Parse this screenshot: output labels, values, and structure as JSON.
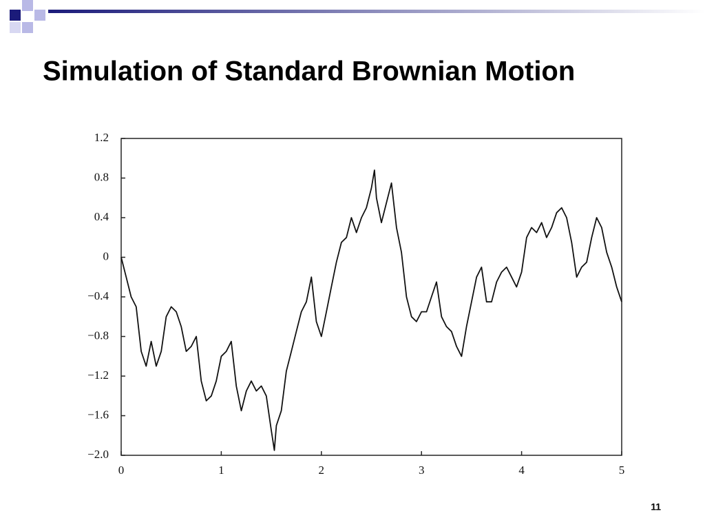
{
  "title": "Simulation of Standard Brownian Motion",
  "page_number": "11",
  "chart_data": {
    "type": "line",
    "x": [
      0,
      0.05,
      0.1,
      0.15,
      0.2,
      0.25,
      0.3,
      0.35,
      0.4,
      0.45,
      0.5,
      0.55,
      0.6,
      0.65,
      0.7,
      0.75,
      0.8,
      0.85,
      0.9,
      0.95,
      1.0,
      1.05,
      1.1,
      1.15,
      1.2,
      1.25,
      1.3,
      1.35,
      1.4,
      1.45,
      1.5,
      1.53,
      1.55,
      1.6,
      1.65,
      1.7,
      1.75,
      1.8,
      1.85,
      1.9,
      1.95,
      2.0,
      2.05,
      2.1,
      2.15,
      2.2,
      2.25,
      2.3,
      2.35,
      2.4,
      2.45,
      2.5,
      2.53,
      2.55,
      2.6,
      2.65,
      2.7,
      2.75,
      2.8,
      2.85,
      2.9,
      2.95,
      3.0,
      3.05,
      3.1,
      3.15,
      3.2,
      3.25,
      3.3,
      3.35,
      3.4,
      3.45,
      3.5,
      3.55,
      3.6,
      3.65,
      3.7,
      3.75,
      3.8,
      3.85,
      3.9,
      3.95,
      4.0,
      4.05,
      4.1,
      4.15,
      4.2,
      4.25,
      4.3,
      4.35,
      4.4,
      4.45,
      4.5,
      4.55,
      4.6,
      4.65,
      4.7,
      4.75,
      4.8,
      4.85,
      4.9,
      4.95,
      5.0
    ],
    "values": [
      0,
      -0.2,
      -0.4,
      -0.5,
      -0.95,
      -1.1,
      -0.85,
      -1.1,
      -0.95,
      -0.6,
      -0.5,
      -0.55,
      -0.7,
      -0.95,
      -0.9,
      -0.8,
      -1.25,
      -1.45,
      -1.4,
      -1.25,
      -1.0,
      -0.95,
      -0.85,
      -1.3,
      -1.55,
      -1.35,
      -1.25,
      -1.35,
      -1.3,
      -1.4,
      -1.75,
      -1.95,
      -1.7,
      -1.55,
      -1.15,
      -0.95,
      -0.75,
      -0.55,
      -0.45,
      -0.2,
      -0.65,
      -0.8,
      -0.55,
      -0.3,
      -0.05,
      0.15,
      0.2,
      0.4,
      0.25,
      0.4,
      0.5,
      0.7,
      0.88,
      0.6,
      0.35,
      0.55,
      0.75,
      0.3,
      0.05,
      -0.4,
      -0.6,
      -0.65,
      -0.55,
      -0.55,
      -0.4,
      -0.25,
      -0.6,
      -0.7,
      -0.75,
      -0.9,
      -1.0,
      -0.7,
      -0.45,
      -0.2,
      -0.1,
      -0.45,
      -0.45,
      -0.25,
      -0.15,
      -0.1,
      -0.2,
      -0.3,
      -0.15,
      0.2,
      0.3,
      0.25,
      0.35,
      0.2,
      0.3,
      0.45,
      0.5,
      0.4,
      0.15,
      -0.2,
      -0.1,
      -0.05,
      0.2,
      0.4,
      0.3,
      0.05,
      -0.1,
      -0.3,
      -0.45
    ],
    "color": "#111111",
    "xlim": [
      0,
      5
    ],
    "xticks": [
      0,
      1,
      2,
      3,
      4,
      5
    ],
    "ylim": [
      -2.0,
      1.2
    ],
    "yticks": [
      {
        "value": -2.0,
        "label": "−2.0"
      },
      {
        "value": -1.6,
        "label": "−1.6"
      },
      {
        "value": -1.2,
        "label": "−1.2"
      },
      {
        "value": -0.8,
        "label": "−0.8"
      },
      {
        "value": -0.4,
        "label": "−0.4"
      },
      0,
      0.4,
      0.8,
      1.2
    ]
  }
}
